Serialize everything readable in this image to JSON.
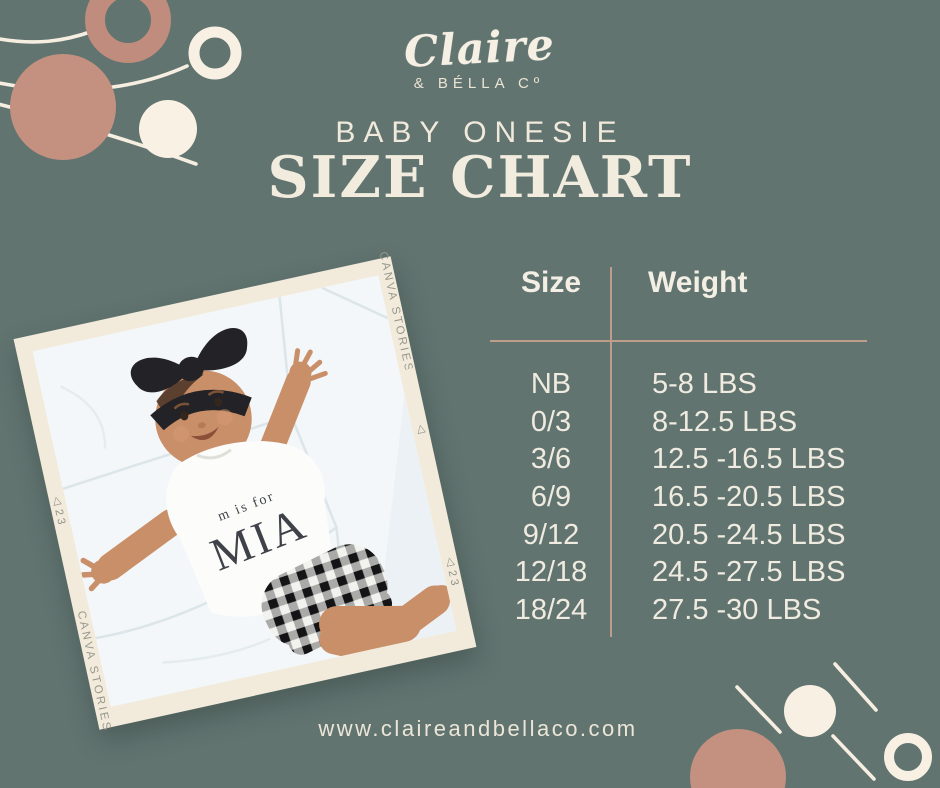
{
  "page": {
    "background_color": "#617470",
    "website": "www.claireandbellaco.com"
  },
  "logo": {
    "brand_script": "Claire",
    "brand_sub": "& BÉLLA Cº"
  },
  "heading": {
    "kicker": "BABY ONESIE",
    "title": "SIZE CHART"
  },
  "photo": {
    "film_brand_left": "CANVA STORIES",
    "film_brand_right": "CANVA STORIES",
    "frame_number_left": "23",
    "frame_number_right": "23",
    "triangle_mark": "△",
    "shirt_text_small": "m is for",
    "shirt_text_large": "MIA"
  },
  "chart_data": {
    "type": "table",
    "title": "SIZE CHART",
    "subtitle": "BABY ONESIE",
    "columns": [
      "Size",
      "Weight"
    ],
    "rows": [
      [
        "NB",
        "5-8 LBS"
      ],
      [
        "0/3",
        "8-12.5 LBS"
      ],
      [
        "3/6",
        "12.5 -16.5 LBS"
      ],
      [
        "6/9",
        "16.5 -20.5 LBS"
      ],
      [
        "9/12",
        "20.5 -24.5 LBS"
      ],
      [
        "12/18",
        "24.5 -27.5 LBS"
      ],
      [
        "18/24",
        "27.5 -30 LBS"
      ]
    ]
  },
  "colors": {
    "cream": "#f2ecdf",
    "rose": "#c28e7f",
    "divider": "#bf9d8d",
    "charcoal": "#232327"
  }
}
